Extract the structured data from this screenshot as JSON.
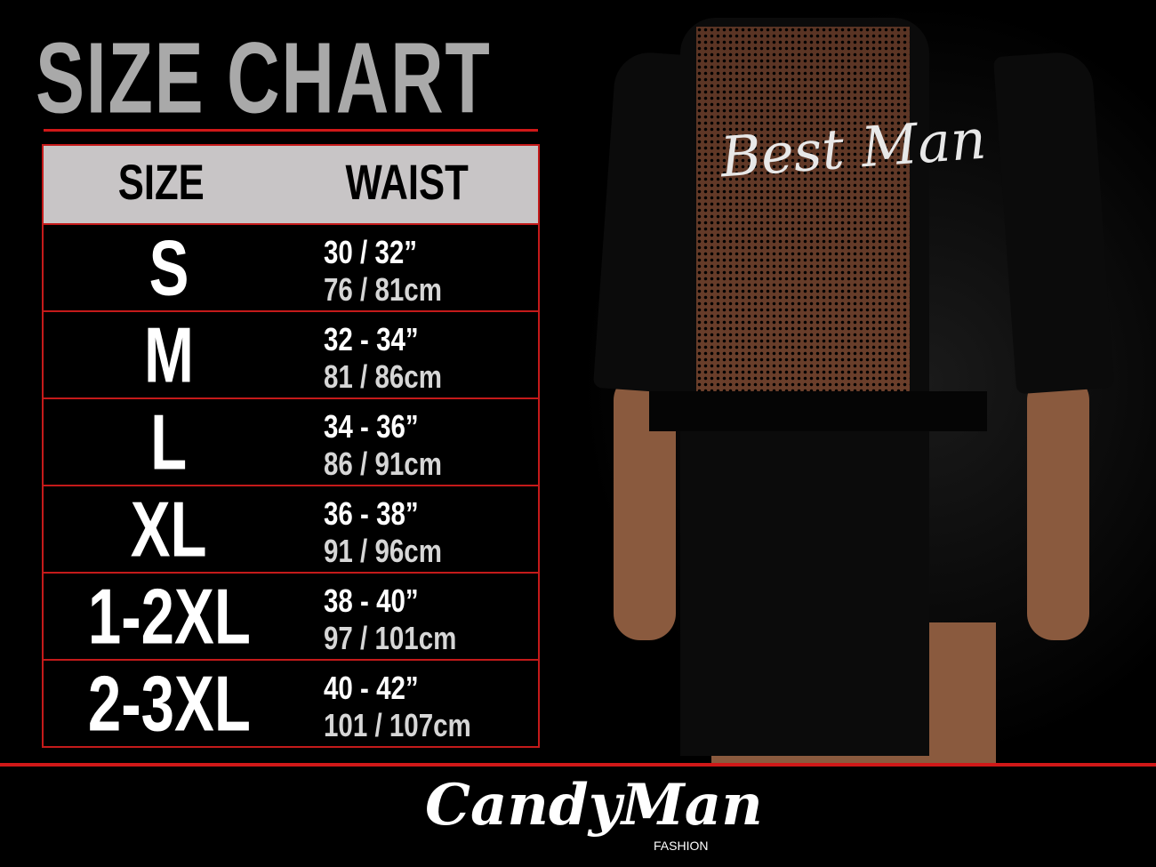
{
  "title": "SIZE CHART",
  "table": {
    "headers": {
      "size": "SIZE",
      "waist": "WAIST"
    },
    "rows": [
      {
        "size": "S",
        "inches": "30 / 32”",
        "cm": "76 / 81cm"
      },
      {
        "size": "M",
        "inches": "32 - 34”",
        "cm": "81 / 86cm"
      },
      {
        "size": "L",
        "inches": "34 - 36”",
        "cm": "86 / 91cm"
      },
      {
        "size": "XL",
        "inches": "36 - 38”",
        "cm": "91 / 96cm"
      },
      {
        "size": "1-2XL",
        "inches": "38 - 40”",
        "cm": "97 / 101cm"
      },
      {
        "size": "2-3XL",
        "inches": "40 - 42”",
        "cm": "101 / 107cm"
      }
    ]
  },
  "product": {
    "print_text": "Best Man"
  },
  "brand": {
    "name": "CandyMan",
    "sub": "FASHION"
  },
  "colors": {
    "accent": "#d01818",
    "header_bg": "#c8c5c6",
    "title": "#a9a9a9"
  }
}
